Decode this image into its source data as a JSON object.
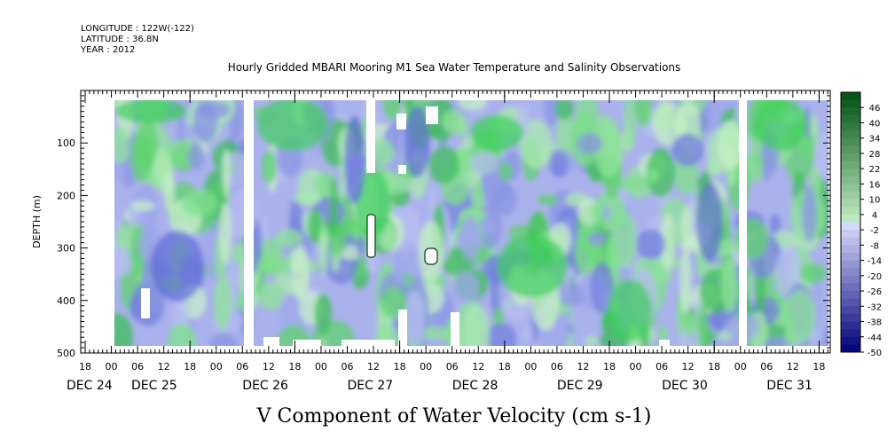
{
  "header": {
    "longitude": "LONGITUDE : 122W(-122)",
    "latitude": "LATITUDE : 36.8N",
    "year": "YEAR : 2012"
  },
  "chart_data": {
    "type": "heatmap",
    "title": "Hourly Gridded MBARI Mooring M1 Sea Water Temperature and Salinity Observations",
    "xlabel": "V Component of Water Velocity (cm s-1)",
    "ylabel": "DEPTH (m)",
    "ylim": [
      500,
      0
    ],
    "y_ticks": [
      100,
      200,
      300,
      400,
      500
    ],
    "x_hour_ticks": [
      "18",
      "00",
      "06",
      "12",
      "18",
      "00",
      "06",
      "12",
      "18",
      "00",
      "06",
      "12",
      "18",
      "00",
      "06",
      "12",
      "18",
      "00",
      "06",
      "12",
      "18",
      "00",
      "06",
      "12",
      "18",
      "00",
      "06",
      "12",
      "18"
    ],
    "x_date_labels": [
      "DEC 24",
      "DEC 25",
      "DEC 26",
      "DEC 27",
      "DEC 28",
      "DEC 29",
      "DEC 30",
      "DEC 31"
    ],
    "colorbar": {
      "labels": [
        "46",
        "40",
        "34",
        "28",
        "22",
        "16",
        "10",
        "4",
        "-2",
        "-8",
        "-14",
        "-20",
        "-26",
        "-32",
        "-38",
        "-44",
        "-50"
      ],
      "range": [
        -50,
        52
      ],
      "step": 3
    },
    "data_extent": {
      "time_start": "DEC 25 00",
      "time_end": "DEC 31 18",
      "depth_min": 20,
      "depth_max": 490
    }
  }
}
